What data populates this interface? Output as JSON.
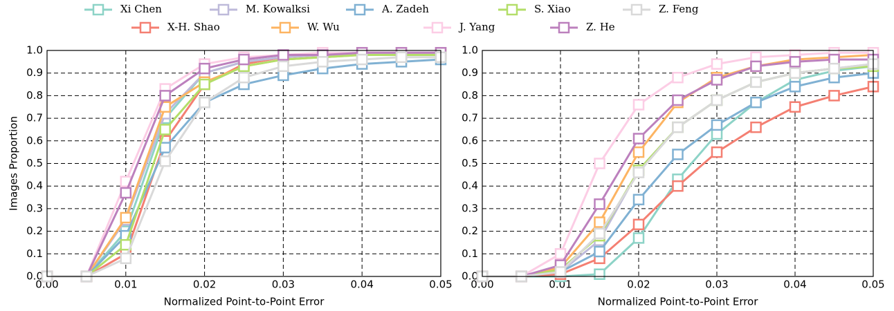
{
  "chart_data": [
    {
      "type": "line",
      "x_label": "Normalized Point-to-Point Error",
      "y_label": "Images Proportion",
      "x": [
        0,
        0.005,
        0.01,
        0.015,
        0.02,
        0.025,
        0.03,
        0.035,
        0.04,
        0.045,
        0.05
      ],
      "xlim": [
        0,
        0.05
      ],
      "ylim": [
        0,
        1
      ],
      "xticks": [
        {
          "value": 0,
          "label": "0.00"
        },
        0.01,
        0.02,
        0.03,
        0.04,
        0.05
      ],
      "yticks": [
        {
          "value": 0,
          "label": "0.0"
        },
        0.1,
        0.2,
        0.3,
        0.4,
        0.5,
        0.6,
        0.7,
        0.8,
        0.9,
        {
          "value": 1,
          "label": "1.0"
        }
      ],
      "grid": true,
      "marker": "square",
      "series": [
        {
          "name": "Xi Chen",
          "color": "#8dd3c7",
          "values": [
            0,
            0,
            0.2,
            0.7,
            0.9,
            0.95,
            0.97,
            0.98,
            0.98,
            0.99,
            0.99
          ]
        },
        {
          "name": "X-H. Shao",
          "color": "#f47f72",
          "values": [
            0,
            0,
            0.1,
            0.6,
            0.85,
            0.94,
            0.97,
            0.98,
            0.99,
            0.99,
            0.99
          ]
        },
        {
          "name": "M. Kowalksi",
          "color": "#bebada",
          "values": [
            0,
            0,
            0.25,
            0.72,
            0.9,
            0.95,
            0.97,
            0.98,
            0.98,
            0.99,
            0.99
          ]
        },
        {
          "name": "W. Wu",
          "color": "#fdb462",
          "values": [
            0,
            0,
            0.26,
            0.75,
            0.86,
            0.93,
            0.96,
            0.97,
            0.98,
            0.98,
            0.98
          ]
        },
        {
          "name": "A. Zadeh",
          "color": "#80b1d3",
          "values": [
            0,
            0,
            0.18,
            0.57,
            0.77,
            0.85,
            0.89,
            0.92,
            0.94,
            0.95,
            0.96
          ]
        },
        {
          "name": "J. Yang",
          "color": "#fccde5",
          "values": [
            0,
            0,
            0.42,
            0.83,
            0.94,
            0.97,
            0.98,
            0.99,
            0.99,
            0.99,
            0.99
          ]
        },
        {
          "name": "S. Xiao",
          "color": "#b3de69",
          "values": [
            0,
            0,
            0.14,
            0.65,
            0.85,
            0.93,
            0.96,
            0.97,
            0.98,
            0.98,
            0.98
          ]
        },
        {
          "name": "Z. He",
          "color": "#bc80bd",
          "values": [
            0,
            0,
            0.37,
            0.8,
            0.92,
            0.96,
            0.98,
            0.98,
            0.99,
            0.99,
            0.99
          ]
        },
        {
          "name": "Z. Feng",
          "color": "#d9d9d9",
          "values": [
            0,
            0,
            0.08,
            0.51,
            0.77,
            0.88,
            0.93,
            0.95,
            0.96,
            0.97,
            0.97
          ]
        }
      ]
    },
    {
      "type": "line",
      "x_label": "Normalized Point-to-Point Error",
      "x": [
        0,
        0.005,
        0.01,
        0.015,
        0.02,
        0.025,
        0.03,
        0.035,
        0.04,
        0.045,
        0.05
      ],
      "xlim": [
        0,
        0.05
      ],
      "ylim": [
        0,
        1
      ],
      "xticks": [
        {
          "value": 0,
          "label": "0.00"
        },
        0.01,
        0.02,
        0.03,
        0.04,
        0.05
      ],
      "yticks": [
        {
          "value": 0,
          "label": "0.0"
        },
        0.1,
        0.2,
        0.3,
        0.4,
        0.5,
        0.6,
        0.7,
        0.8,
        0.9,
        {
          "value": 1,
          "label": "1.0"
        }
      ],
      "grid": true,
      "marker": "square",
      "series": [
        {
          "name": "Xi Chen",
          "color": "#8dd3c7",
          "values": [
            0,
            0,
            0,
            0.01,
            0.17,
            0.43,
            0.63,
            0.77,
            0.87,
            0.91,
            0.93
          ]
        },
        {
          "name": "X-H. Shao",
          "color": "#f47f72",
          "values": [
            0,
            0,
            0.01,
            0.08,
            0.23,
            0.4,
            0.55,
            0.66,
            0.75,
            0.8,
            0.84
          ]
        },
        {
          "name": "M. Kowalksi",
          "color": "#bebada",
          "values": [
            0,
            0,
            0.02,
            0.16,
            0.47,
            0.66,
            0.78,
            0.86,
            0.9,
            0.92,
            0.94
          ]
        },
        {
          "name": "W. Wu",
          "color": "#fdb462",
          "values": [
            0,
            0,
            0.04,
            0.24,
            0.55,
            0.77,
            0.88,
            0.93,
            0.96,
            0.97,
            0.98
          ]
        },
        {
          "name": "A. Zadeh",
          "color": "#80b1d3",
          "values": [
            0,
            0,
            0.02,
            0.11,
            0.34,
            0.54,
            0.67,
            0.77,
            0.84,
            0.88,
            0.9
          ]
        },
        {
          "name": "J. Yang",
          "color": "#fccde5",
          "values": [
            0,
            0,
            0.1,
            0.5,
            0.76,
            0.88,
            0.94,
            0.97,
            0.98,
            0.99,
            0.99
          ]
        },
        {
          "name": "S. Xiao",
          "color": "#b3de69",
          "values": [
            0,
            0,
            0.03,
            0.18,
            0.47,
            0.66,
            0.78,
            0.86,
            0.9,
            0.92,
            0.93
          ]
        },
        {
          "name": "Z. He",
          "color": "#bc80bd",
          "values": [
            0,
            0,
            0.05,
            0.32,
            0.61,
            0.78,
            0.87,
            0.93,
            0.95,
            0.96,
            0.96
          ]
        },
        {
          "name": "Z. Feng",
          "color": "#d9d9d9",
          "values": [
            0,
            0,
            0.02,
            0.19,
            0.46,
            0.66,
            0.78,
            0.86,
            0.9,
            0.92,
            0.94
          ]
        }
      ]
    }
  ]
}
